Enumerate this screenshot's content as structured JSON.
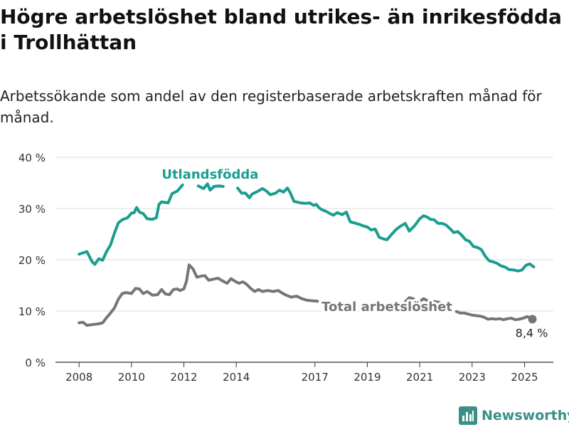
{
  "title": "Högre arbetslöshet bland utrikes- än inrikesfödda i Trollhättan",
  "subtitle": "Arbetssökande som andel av den registerbaserade arbetskraften månad för månad.",
  "brand": {
    "name": "Newsworthy",
    "icon": "bar-chart-logo-icon"
  },
  "chart_data": {
    "type": "line",
    "ylim": [
      0,
      40
    ],
    "yticks": [
      {
        "value": 0,
        "label": "0 %"
      },
      {
        "value": 10,
        "label": "10 %"
      },
      {
        "value": 20,
        "label": "20 %"
      },
      {
        "value": 30,
        "label": "30 %"
      },
      {
        "value": 40,
        "label": "40 %"
      }
    ],
    "xticks": [
      {
        "value": 2008.0,
        "label": "2008"
      },
      {
        "value": 2010.0,
        "label": "2010"
      },
      {
        "value": 2012.0,
        "label": "2012"
      },
      {
        "value": 2014.0,
        "label": "2014"
      },
      {
        "value": 2017.0,
        "label": "2017"
      },
      {
        "value": 2019.0,
        "label": "2019"
      },
      {
        "value": 2021.0,
        "label": "2021"
      },
      {
        "value": 2023.0,
        "label": "2023"
      },
      {
        "value": 2025.0,
        "label": "2025"
      }
    ],
    "xlim": [
      2007.1,
      2026.1
    ],
    "grid": true,
    "series": [
      {
        "name": "Utlandsfödda",
        "color": "#1a9e8f",
        "points": [
          [
            2008.0,
            21.1
          ],
          [
            2008.3,
            21.6
          ],
          [
            2008.5,
            19.6
          ],
          [
            2008.6,
            19.1
          ],
          [
            2008.75,
            20.2
          ],
          [
            2008.9,
            19.9
          ],
          [
            2009.05,
            21.6
          ],
          [
            2009.2,
            22.9
          ],
          [
            2009.35,
            25.2
          ],
          [
            2009.5,
            27.2
          ],
          [
            2009.65,
            27.8
          ],
          [
            2009.85,
            28.2
          ],
          [
            2010.0,
            29.1
          ],
          [
            2010.1,
            29.2
          ],
          [
            2010.2,
            30.2
          ],
          [
            2010.3,
            29.3
          ],
          [
            2010.45,
            29.0
          ],
          [
            2010.6,
            28.0
          ],
          [
            2010.8,
            27.9
          ],
          [
            2010.95,
            28.2
          ],
          [
            2011.05,
            30.8
          ],
          [
            2011.15,
            31.3
          ],
          [
            2011.4,
            31.1
          ],
          [
            2011.55,
            32.9
          ],
          [
            2011.75,
            33.4
          ],
          [
            2011.95,
            34.6
          ]
        ]
      },
      {
        "name": "Utlandsfödda",
        "color": "#1a9e8f",
        "points": [
          [
            2012.55,
            34.4
          ],
          [
            2012.75,
            33.9
          ],
          [
            2012.9,
            34.8
          ],
          [
            2013.0,
            33.6
          ],
          [
            2013.15,
            34.3
          ],
          [
            2013.35,
            34.4
          ],
          [
            2013.5,
            34.3
          ]
        ]
      },
      {
        "name": "Utlandsfödda",
        "color": "#1a9e8f",
        "points": [
          [
            2014.05,
            34.0
          ],
          [
            2014.2,
            33.0
          ],
          [
            2014.35,
            33.0
          ],
          [
            2014.5,
            32.1
          ],
          [
            2014.6,
            32.8
          ],
          [
            2014.8,
            33.3
          ],
          [
            2015.0,
            33.9
          ],
          [
            2015.15,
            33.4
          ],
          [
            2015.3,
            32.7
          ],
          [
            2015.5,
            33.0
          ],
          [
            2015.65,
            33.6
          ],
          [
            2015.8,
            33.2
          ],
          [
            2015.95,
            34.0
          ],
          [
            2016.05,
            33.2
          ],
          [
            2016.2,
            31.4
          ],
          [
            2016.45,
            31.1
          ],
          [
            2016.65,
            31.0
          ],
          [
            2016.8,
            31.1
          ],
          [
            2016.95,
            30.6
          ],
          [
            2017.05,
            30.8
          ],
          [
            2017.15,
            30.2
          ],
          [
            2017.25,
            29.8
          ],
          [
            2017.4,
            29.5
          ],
          [
            2017.55,
            29.1
          ],
          [
            2017.7,
            28.7
          ],
          [
            2017.85,
            29.2
          ],
          [
            2018.05,
            28.8
          ],
          [
            2018.2,
            29.3
          ],
          [
            2018.35,
            27.4
          ],
          [
            2018.5,
            27.2
          ],
          [
            2018.7,
            26.9
          ],
          [
            2018.85,
            26.6
          ],
          [
            2019.0,
            26.4
          ],
          [
            2019.15,
            25.8
          ],
          [
            2019.3,
            26.0
          ],
          [
            2019.45,
            24.4
          ],
          [
            2019.6,
            24.1
          ],
          [
            2019.75,
            23.9
          ],
          [
            2019.9,
            24.8
          ],
          [
            2020.1,
            25.9
          ],
          [
            2020.25,
            26.5
          ],
          [
            2020.45,
            27.1
          ],
          [
            2020.6,
            25.6
          ],
          [
            2020.8,
            26.6
          ],
          [
            2021.0,
            28.0
          ],
          [
            2021.15,
            28.6
          ],
          [
            2021.3,
            28.3
          ],
          [
            2021.4,
            27.9
          ],
          [
            2021.55,
            27.8
          ],
          [
            2021.7,
            27.1
          ],
          [
            2021.85,
            27.1
          ],
          [
            2022.0,
            26.8
          ],
          [
            2022.15,
            26.1
          ],
          [
            2022.3,
            25.3
          ],
          [
            2022.45,
            25.5
          ],
          [
            2022.6,
            24.8
          ],
          [
            2022.75,
            23.9
          ],
          [
            2022.9,
            23.6
          ],
          [
            2023.05,
            22.6
          ],
          [
            2023.2,
            22.4
          ],
          [
            2023.35,
            22.0
          ],
          [
            2023.5,
            20.7
          ],
          [
            2023.65,
            19.8
          ],
          [
            2023.8,
            19.6
          ],
          [
            2023.95,
            19.3
          ],
          [
            2024.1,
            18.8
          ],
          [
            2024.25,
            18.6
          ],
          [
            2024.4,
            18.1
          ],
          [
            2024.6,
            18.0
          ],
          [
            2024.75,
            17.8
          ],
          [
            2024.9,
            18.0
          ],
          [
            2025.05,
            18.9
          ],
          [
            2025.2,
            19.2
          ],
          [
            2025.35,
            18.6
          ]
        ]
      },
      {
        "name": "Total arbetslöshet",
        "color": "#76767a",
        "points": [
          [
            2008.0,
            7.7
          ],
          [
            2008.15,
            7.8
          ],
          [
            2008.3,
            7.2
          ],
          [
            2008.45,
            7.3
          ],
          [
            2008.6,
            7.4
          ],
          [
            2008.75,
            7.5
          ],
          [
            2008.9,
            7.7
          ],
          [
            2009.05,
            8.7
          ],
          [
            2009.2,
            9.6
          ],
          [
            2009.35,
            10.6
          ],
          [
            2009.5,
            12.3
          ],
          [
            2009.65,
            13.4
          ],
          [
            2009.8,
            13.6
          ],
          [
            2010.0,
            13.4
          ],
          [
            2010.15,
            14.4
          ],
          [
            2010.3,
            14.3
          ],
          [
            2010.45,
            13.4
          ],
          [
            2010.6,
            13.8
          ],
          [
            2010.8,
            13.1
          ],
          [
            2011.0,
            13.2
          ],
          [
            2011.15,
            14.2
          ],
          [
            2011.3,
            13.3
          ],
          [
            2011.45,
            13.2
          ],
          [
            2011.6,
            14.2
          ],
          [
            2011.75,
            14.3
          ],
          [
            2011.85,
            14.0
          ],
          [
            2012.0,
            14.3
          ],
          [
            2012.1,
            15.8
          ],
          [
            2012.2,
            19.0
          ],
          [
            2012.35,
            18.2
          ],
          [
            2012.5,
            16.6
          ],
          [
            2012.65,
            16.8
          ],
          [
            2012.8,
            16.9
          ],
          [
            2012.95,
            16.0
          ],
          [
            2013.1,
            16.2
          ],
          [
            2013.3,
            16.4
          ],
          [
            2013.5,
            15.8
          ],
          [
            2013.65,
            15.4
          ],
          [
            2013.8,
            16.3
          ],
          [
            2013.95,
            15.8
          ],
          [
            2014.1,
            15.4
          ],
          [
            2014.25,
            15.7
          ],
          [
            2014.4,
            15.2
          ],
          [
            2014.55,
            14.4
          ],
          [
            2014.7,
            13.8
          ],
          [
            2014.85,
            14.2
          ],
          [
            2015.0,
            13.8
          ],
          [
            2015.2,
            14.0
          ],
          [
            2015.4,
            13.8
          ],
          [
            2015.6,
            14.0
          ],
          [
            2015.75,
            13.5
          ],
          [
            2015.9,
            13.1
          ],
          [
            2016.1,
            12.7
          ],
          [
            2016.3,
            12.9
          ],
          [
            2016.5,
            12.4
          ],
          [
            2016.7,
            12.1
          ],
          [
            2016.9,
            12.0
          ],
          [
            2017.1,
            11.9
          ]
        ]
      },
      {
        "name": "Total arbetslöshet",
        "color": "#76767a",
        "points": [
          [
            2020.45,
            11.8
          ],
          [
            2020.6,
            12.6
          ],
          [
            2020.75,
            12.4
          ],
          [
            2020.85,
            12.0
          ],
          [
            2021.0,
            11.9
          ],
          [
            2021.15,
            12.4
          ],
          [
            2021.3,
            12.0
          ],
          [
            2021.45,
            11.9
          ],
          [
            2021.6,
            11.8
          ],
          [
            2021.75,
            11.7
          ]
        ]
      },
      {
        "name": "Total arbetslöshet",
        "color": "#76767a",
        "points": [
          [
            2022.4,
            9.9
          ],
          [
            2022.55,
            9.6
          ],
          [
            2022.7,
            9.6
          ],
          [
            2022.85,
            9.4
          ],
          [
            2023.0,
            9.2
          ],
          [
            2023.15,
            9.1
          ],
          [
            2023.3,
            9.0
          ],
          [
            2023.45,
            8.8
          ],
          [
            2023.6,
            8.4
          ],
          [
            2023.75,
            8.5
          ],
          [
            2023.9,
            8.4
          ],
          [
            2024.05,
            8.5
          ],
          [
            2024.2,
            8.3
          ],
          [
            2024.35,
            8.5
          ],
          [
            2024.5,
            8.6
          ],
          [
            2024.65,
            8.3
          ],
          [
            2024.8,
            8.4
          ],
          [
            2024.95,
            8.6
          ],
          [
            2025.1,
            8.9
          ],
          [
            2025.2,
            8.7
          ],
          [
            2025.3,
            8.4
          ]
        ]
      }
    ],
    "series_labels": [
      {
        "text": "Utlandsfödda",
        "color": "#1a9e8f",
        "x": 2013.0,
        "y": 35.8
      },
      {
        "text": "Total arbetslöshet",
        "color": "#76767a",
        "x": 2019.75,
        "y": 10.0
      }
    ],
    "endpoint": {
      "x": 2025.3,
      "y": 8.4,
      "label": "8,4 %",
      "color": "#76767a"
    }
  }
}
